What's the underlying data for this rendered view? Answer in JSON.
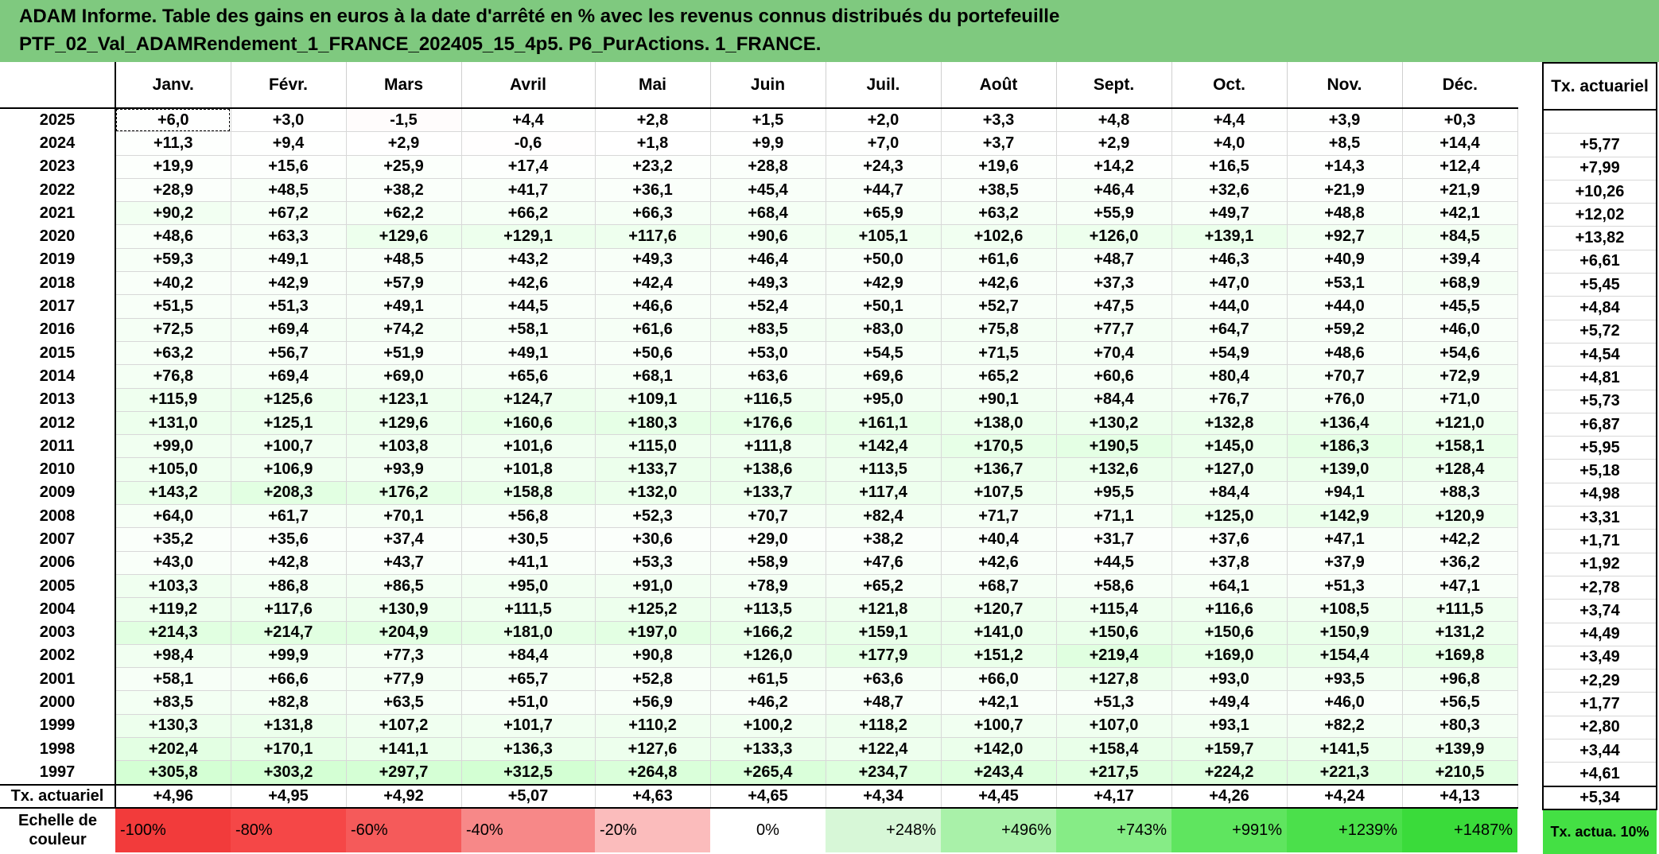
{
  "title": {
    "line1": "ADAM Informe. Table des gains en euros à la date d'arrêté en % avec les revenus connus distribués du portefeuille",
    "line2": "PTF_02_Val_ADAMRendement_1_FRANCE_202405_15_4p5. P6_PurActions. 1_FRANCE."
  },
  "months": [
    "Janv.",
    "Févr.",
    "Mars",
    "Avril",
    "Mai",
    "Juin",
    "Juil.",
    "Août",
    "Sept.",
    "Oct.",
    "Nov.",
    "Déc."
  ],
  "side_header": "Tx. actuariel",
  "rows": [
    {
      "year": "2025",
      "values": [
        "+6,0",
        "+3,0",
        "-1,5",
        "+4,4",
        "+2,8",
        "+1,5",
        "+2,0",
        "+3,3",
        "+4,8",
        "+4,4",
        "+3,9",
        "+0,3"
      ],
      "tx": ""
    },
    {
      "year": "2024",
      "values": [
        "+11,3",
        "+9,4",
        "+2,9",
        "-0,6",
        "+1,8",
        "+9,9",
        "+7,0",
        "+3,7",
        "+2,9",
        "+4,0",
        "+8,5",
        "+14,4"
      ],
      "tx": "+5,77"
    },
    {
      "year": "2023",
      "values": [
        "+19,9",
        "+15,6",
        "+25,9",
        "+17,4",
        "+23,2",
        "+28,8",
        "+24,3",
        "+19,6",
        "+14,2",
        "+16,5",
        "+14,3",
        "+12,4"
      ],
      "tx": "+7,99"
    },
    {
      "year": "2022",
      "values": [
        "+28,9",
        "+48,5",
        "+38,2",
        "+41,7",
        "+36,1",
        "+45,4",
        "+44,7",
        "+38,5",
        "+46,4",
        "+32,6",
        "+21,9",
        "+21,9"
      ],
      "tx": "+10,26"
    },
    {
      "year": "2021",
      "values": [
        "+90,2",
        "+67,2",
        "+62,2",
        "+66,2",
        "+66,3",
        "+68,4",
        "+65,9",
        "+63,2",
        "+55,9",
        "+49,7",
        "+48,8",
        "+42,1"
      ],
      "tx": "+12,02"
    },
    {
      "year": "2020",
      "values": [
        "+48,6",
        "+63,3",
        "+129,6",
        "+129,1",
        "+117,6",
        "+90,6",
        "+105,1",
        "+102,6",
        "+126,0",
        "+139,1",
        "+92,7",
        "+84,5"
      ],
      "tx": "+13,82"
    },
    {
      "year": "2019",
      "values": [
        "+59,3",
        "+49,1",
        "+48,5",
        "+43,2",
        "+49,3",
        "+46,4",
        "+50,0",
        "+61,6",
        "+48,7",
        "+46,3",
        "+40,9",
        "+39,4"
      ],
      "tx": "+6,61"
    },
    {
      "year": "2018",
      "values": [
        "+40,2",
        "+42,9",
        "+57,9",
        "+42,6",
        "+42,4",
        "+49,3",
        "+42,9",
        "+42,6",
        "+37,3",
        "+47,0",
        "+53,1",
        "+68,9"
      ],
      "tx": "+5,45"
    },
    {
      "year": "2017",
      "values": [
        "+51,5",
        "+51,3",
        "+49,1",
        "+44,5",
        "+46,6",
        "+52,4",
        "+50,1",
        "+52,7",
        "+47,5",
        "+44,0",
        "+44,0",
        "+45,5"
      ],
      "tx": "+4,84"
    },
    {
      "year": "2016",
      "values": [
        "+72,5",
        "+69,4",
        "+74,2",
        "+58,1",
        "+61,6",
        "+83,5",
        "+83,0",
        "+75,8",
        "+77,7",
        "+64,7",
        "+59,2",
        "+46,0"
      ],
      "tx": "+5,72"
    },
    {
      "year": "2015",
      "values": [
        "+63,2",
        "+56,7",
        "+51,9",
        "+49,1",
        "+50,6",
        "+53,0",
        "+54,5",
        "+71,5",
        "+70,4",
        "+54,9",
        "+48,6",
        "+54,6"
      ],
      "tx": "+4,54"
    },
    {
      "year": "2014",
      "values": [
        "+76,8",
        "+69,4",
        "+69,0",
        "+65,6",
        "+68,1",
        "+63,6",
        "+69,6",
        "+65,2",
        "+60,6",
        "+80,4",
        "+70,7",
        "+72,9"
      ],
      "tx": "+4,81"
    },
    {
      "year": "2013",
      "values": [
        "+115,9",
        "+125,6",
        "+123,1",
        "+124,7",
        "+109,1",
        "+116,5",
        "+95,0",
        "+90,1",
        "+84,4",
        "+76,7",
        "+76,0",
        "+71,0"
      ],
      "tx": "+5,73"
    },
    {
      "year": "2012",
      "values": [
        "+131,0",
        "+125,1",
        "+129,6",
        "+160,6",
        "+180,3",
        "+176,6",
        "+161,1",
        "+138,0",
        "+130,2",
        "+132,8",
        "+136,4",
        "+121,0"
      ],
      "tx": "+6,87"
    },
    {
      "year": "2011",
      "values": [
        "+99,0",
        "+100,7",
        "+103,8",
        "+101,6",
        "+115,0",
        "+111,8",
        "+142,4",
        "+170,5",
        "+190,5",
        "+145,0",
        "+186,3",
        "+158,1"
      ],
      "tx": "+5,95"
    },
    {
      "year": "2010",
      "values": [
        "+105,0",
        "+106,9",
        "+93,9",
        "+101,8",
        "+133,7",
        "+138,6",
        "+113,5",
        "+136,7",
        "+132,6",
        "+127,0",
        "+139,0",
        "+128,4"
      ],
      "tx": "+5,18"
    },
    {
      "year": "2009",
      "values": [
        "+143,2",
        "+208,3",
        "+176,2",
        "+158,8",
        "+132,0",
        "+133,7",
        "+117,4",
        "+107,5",
        "+95,5",
        "+84,4",
        "+94,1",
        "+88,3"
      ],
      "tx": "+4,98"
    },
    {
      "year": "2008",
      "values": [
        "+64,0",
        "+61,7",
        "+70,1",
        "+56,8",
        "+52,3",
        "+70,7",
        "+82,4",
        "+71,7",
        "+71,1",
        "+125,0",
        "+142,9",
        "+120,9"
      ],
      "tx": "+3,31"
    },
    {
      "year": "2007",
      "values": [
        "+35,2",
        "+35,6",
        "+37,4",
        "+30,5",
        "+30,6",
        "+29,0",
        "+38,2",
        "+40,4",
        "+31,7",
        "+37,6",
        "+47,1",
        "+42,2"
      ],
      "tx": "+1,71"
    },
    {
      "year": "2006",
      "values": [
        "+43,0",
        "+42,8",
        "+43,7",
        "+41,1",
        "+53,3",
        "+58,9",
        "+47,6",
        "+42,6",
        "+44,5",
        "+37,8",
        "+37,9",
        "+36,2"
      ],
      "tx": "+1,92"
    },
    {
      "year": "2005",
      "values": [
        "+103,3",
        "+86,8",
        "+86,5",
        "+95,0",
        "+91,0",
        "+78,9",
        "+65,2",
        "+68,7",
        "+58,6",
        "+64,1",
        "+51,3",
        "+47,1"
      ],
      "tx": "+2,78"
    },
    {
      "year": "2004",
      "values": [
        "+119,2",
        "+117,6",
        "+130,9",
        "+111,5",
        "+125,2",
        "+113,5",
        "+121,8",
        "+120,7",
        "+115,4",
        "+116,6",
        "+108,5",
        "+111,5"
      ],
      "tx": "+3,74"
    },
    {
      "year": "2003",
      "values": [
        "+214,3",
        "+214,7",
        "+204,9",
        "+181,0",
        "+197,0",
        "+166,2",
        "+159,1",
        "+141,0",
        "+150,6",
        "+150,6",
        "+150,9",
        "+131,2"
      ],
      "tx": "+4,49"
    },
    {
      "year": "2002",
      "values": [
        "+98,4",
        "+99,9",
        "+77,3",
        "+84,4",
        "+90,8",
        "+126,0",
        "+177,9",
        "+151,2",
        "+219,4",
        "+169,0",
        "+154,4",
        "+169,8"
      ],
      "tx": "+3,49"
    },
    {
      "year": "2001",
      "values": [
        "+58,1",
        "+66,6",
        "+77,9",
        "+65,7",
        "+52,8",
        "+61,5",
        "+63,6",
        "+66,0",
        "+127,8",
        "+93,0",
        "+93,5",
        "+96,8"
      ],
      "tx": "+2,29"
    },
    {
      "year": "2000",
      "values": [
        "+83,5",
        "+82,8",
        "+63,5",
        "+51,0",
        "+56,9",
        "+46,2",
        "+48,7",
        "+42,1",
        "+51,3",
        "+49,4",
        "+46,0",
        "+56,5"
      ],
      "tx": "+1,77"
    },
    {
      "year": "1999",
      "values": [
        "+130,3",
        "+131,8",
        "+107,2",
        "+101,7",
        "+110,2",
        "+100,2",
        "+118,2",
        "+100,7",
        "+107,0",
        "+93,1",
        "+82,2",
        "+80,3"
      ],
      "tx": "+2,80"
    },
    {
      "year": "1998",
      "values": [
        "+202,4",
        "+170,1",
        "+141,1",
        "+136,3",
        "+127,6",
        "+133,3",
        "+122,4",
        "+142,0",
        "+158,4",
        "+159,7",
        "+141,5",
        "+139,9"
      ],
      "tx": "+3,44"
    },
    {
      "year": "1997",
      "values": [
        "+305,8",
        "+303,2",
        "+297,7",
        "+312,5",
        "+264,8",
        "+265,4",
        "+234,7",
        "+243,4",
        "+217,5",
        "+224,2",
        "+221,3",
        "+210,5"
      ],
      "tx": "+4,61"
    }
  ],
  "tx_row": {
    "label": "Tx. actuariel",
    "values": [
      "+4,96",
      "+4,95",
      "+4,92",
      "+5,07",
      "+4,63",
      "+4,65",
      "+4,34",
      "+4,45",
      "+4,17",
      "+4,26",
      "+4,24",
      "+4,13"
    ],
    "total": "+5,34"
  },
  "scale_row": {
    "label": "Echelle de couleur",
    "values": [
      "-100%",
      "-80%",
      "-60%",
      "-40%",
      "-20%",
      "0%",
      "+248%",
      "+496%",
      "+743%",
      "+991%",
      "+1239%",
      "+1487%"
    ],
    "colors": [
      "#f23b3b",
      "#f54747",
      "#f55a5a",
      "#f78888",
      "#fbbcbc",
      "#ffffff",
      "#d7f7d7",
      "#a9f1a9",
      "#86ec86",
      "#5fe55f",
      "#4be04b",
      "#3adb3a"
    ],
    "side_label": "Tx. actua. 10%",
    "side_color": "#44e044"
  }
}
